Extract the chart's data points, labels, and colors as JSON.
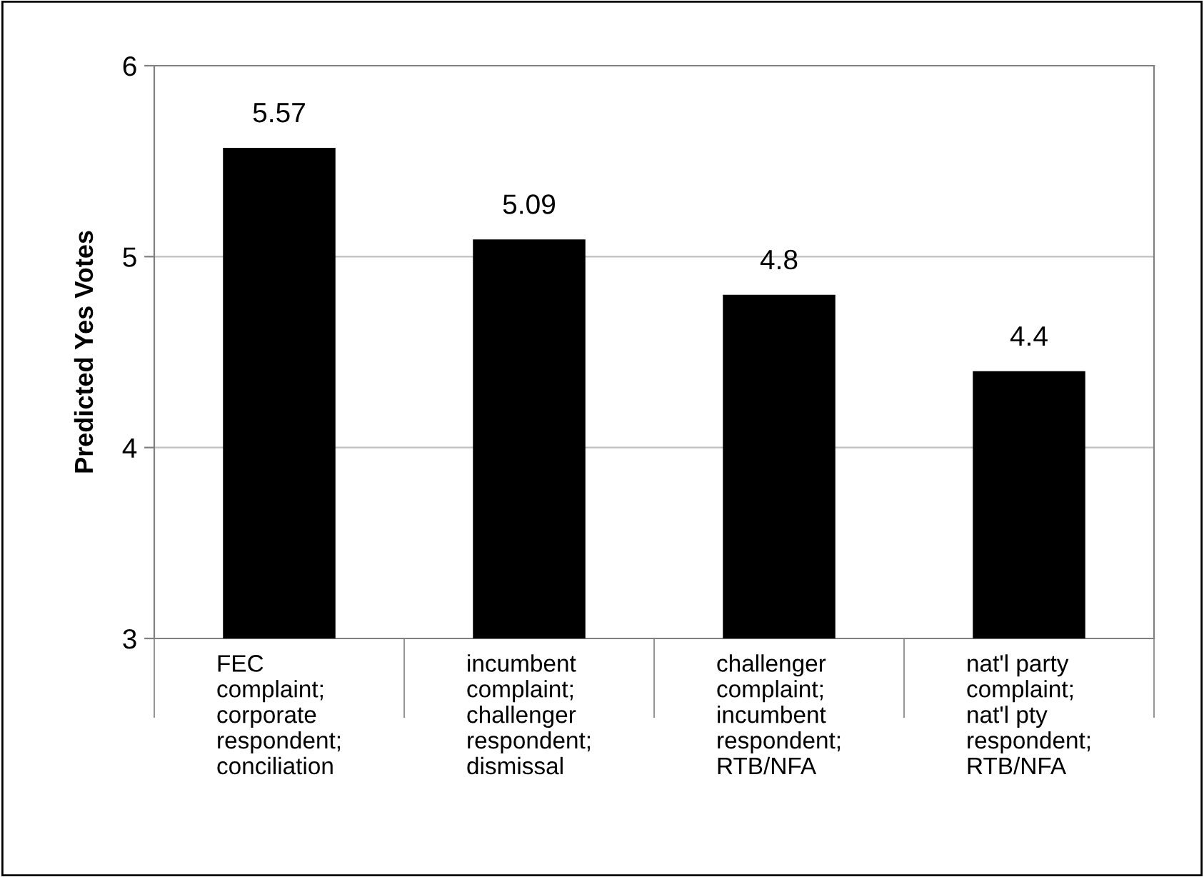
{
  "chart_data": {
    "type": "bar",
    "ylabel": "Predicted Yes Votes",
    "categories": [
      "FEC\ncomplaint;\ncorporate\nrespondent;\nconciliation",
      "incumbent\ncomplaint;\nchallenger\nrespondent;\ndismissal",
      "challenger\ncomplaint;\nincumbent\nrespondent;\nRTB/NFA",
      "nat'l party\ncomplaint;\nnat'l pty\nrespondent;\nRTB/NFA"
    ],
    "values": [
      5.57,
      5.09,
      4.8,
      4.4
    ],
    "color": "#000000",
    "ylim": [
      3,
      6
    ],
    "yticks": [
      3,
      4,
      5,
      6
    ],
    "grid": "y",
    "data_labels": true
  }
}
